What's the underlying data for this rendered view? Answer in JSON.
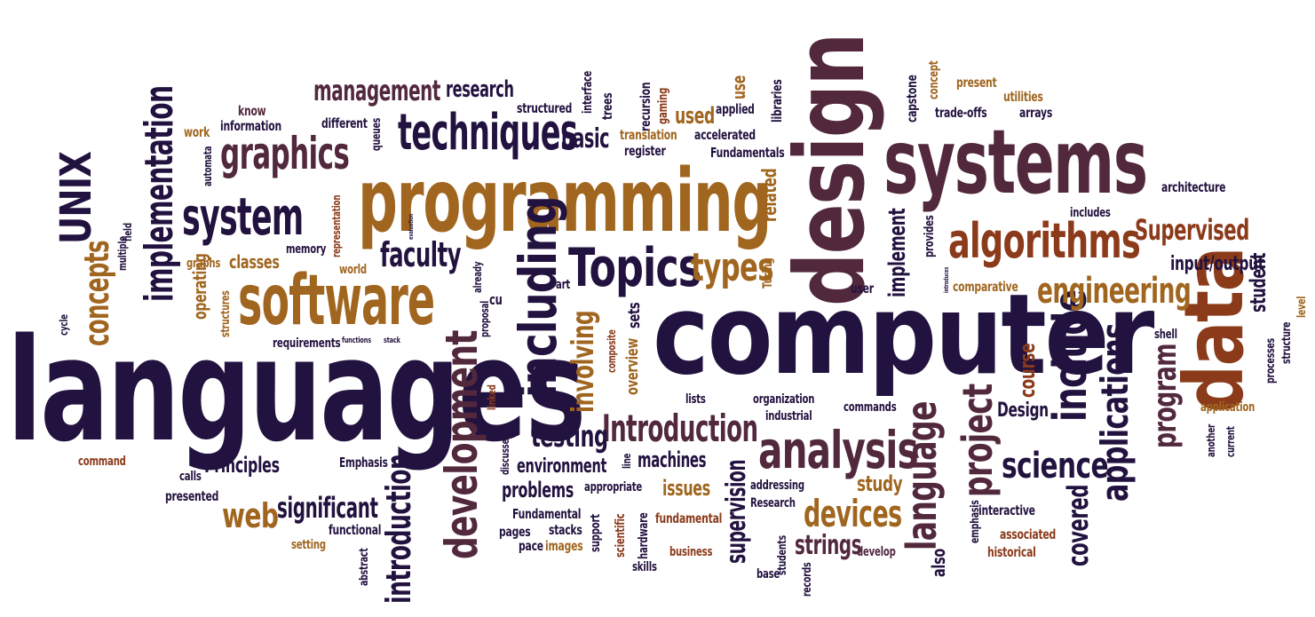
{
  "word_cloud": {
    "words": [
      "languages",
      "computer",
      "design",
      "programming",
      "systems",
      "software",
      "data",
      "including",
      "development",
      "algorithms",
      "Topics",
      "analysis",
      "UNIX",
      "implementation",
      "techniques",
      "system",
      "graphics",
      "include",
      "language",
      "applications",
      "project",
      "engineering",
      "science",
      "Introduction",
      "management",
      "types",
      "faculty",
      "introduction",
      "devices",
      "concepts",
      "Supervised",
      "program",
      "involving",
      "testing",
      "web",
      "significant",
      "supervision",
      "covered",
      "strings",
      "course",
      "research",
      "basic",
      "used",
      "related",
      "implement",
      "input/output",
      "student",
      "Principles",
      "environment",
      "machines",
      "problems",
      "issues",
      "study",
      "Design",
      "Emphasis",
      "classes",
      "operating",
      "requirements",
      "use",
      "interface",
      "structured",
      "trees",
      "recursion",
      "gaming",
      "applied",
      "libraries",
      "capstone",
      "concept",
      "present",
      "utilities",
      "arrays",
      "trade-offs",
      "architecture",
      "includes",
      "provides",
      "comparative",
      "user",
      "Turing",
      "cu",
      "art",
      "sets",
      "overview",
      "lists",
      "organization",
      "industrial",
      "commands",
      "interactive",
      "emphasis",
      "associated",
      "historical",
      "develop",
      "records",
      "students",
      "base",
      "business",
      "skills",
      "hardware",
      "scientific",
      "support",
      "images",
      "pace",
      "pages",
      "stacks",
      "Fundamental",
      "fundamental",
      "appropriate",
      "addressing",
      "Research",
      "functional",
      "abstract",
      "setting",
      "presented",
      "calls",
      "command",
      "cycle",
      "multiple",
      "field",
      "graphs",
      "world",
      "memory",
      "representation",
      "automata",
      "work",
      "know",
      "information",
      "different",
      "queues",
      "translation",
      "register",
      "accelerated",
      "Fundamentals",
      "shell",
      "processes",
      "structure",
      "level",
      "application",
      "another",
      "current",
      "already",
      "proposal",
      "linked",
      "discussed",
      "composite",
      "line",
      "functions",
      "stack",
      "evaluation",
      "introduces",
      "structures",
      "also"
    ]
  }
}
